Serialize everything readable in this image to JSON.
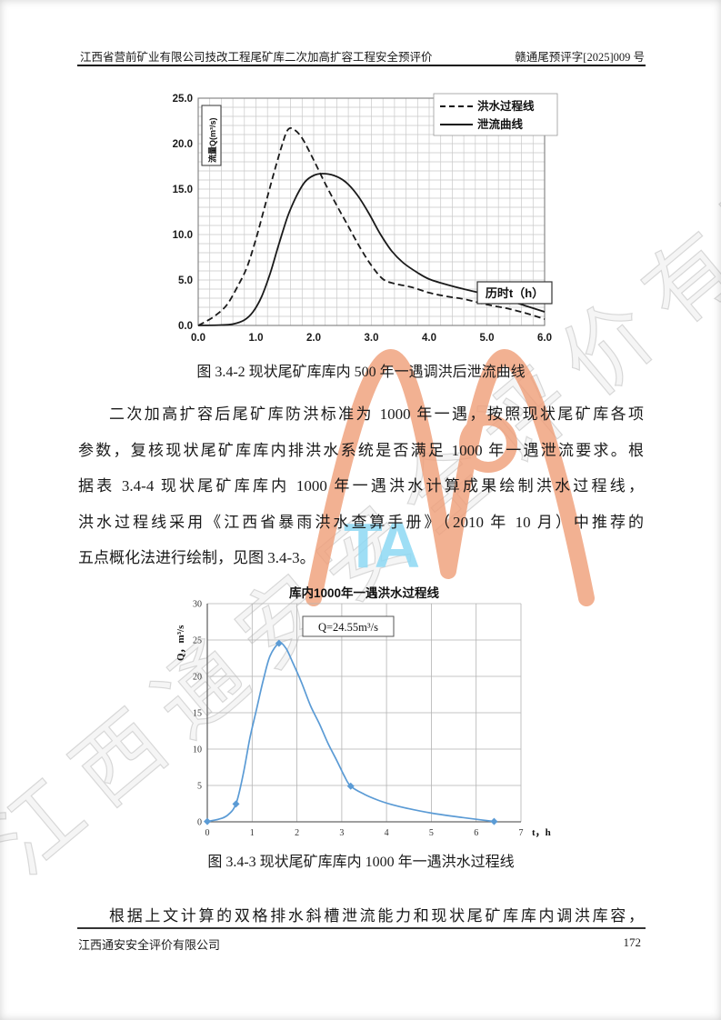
{
  "page": {
    "header": {
      "left": "江西省营前矿业有限公司技改工程尾矿库二次加高扩容工程安全预评价",
      "right": "赣通尾预评字[2025]009 号"
    },
    "footer": {
      "company": "江西通安安全评价有限公司",
      "page_number": "172"
    }
  },
  "figure1": {
    "caption": "图 3.4-2 现状尾矿库库内 500 年一遇调洪后泄流曲线"
  },
  "figure2": {
    "caption": "图 3.4-3 现状尾矿库库内 1000 年一遇洪水过程线"
  },
  "paragraphs": {
    "p1_lines": [
      "二次加高扩容后尾矿库防洪标准为 1000 年一遇，按照现状尾矿库各项",
      "参数，复核现状尾矿库库内排洪水系统是否满足 1000 年一遇泄流要求。根",
      "据表 3.4-4 现状尾矿库库内 1000 年一遇洪水计算成果绘制洪水过程线，",
      "洪水过程线采用《江西省暴雨洪水查算手册》（2010 年 10 月）中推荐的",
      "五点概化法进行绘制，见图 3.4-3。"
    ],
    "p2": "根据上文计算的双格排水斜槽泄流能力和现状尾矿库库内调洪库容，"
  },
  "watermark": {
    "diagonal_text": "江西通安安全评价有限公司",
    "ta_text": "TA",
    "logo_color": "#f09e78",
    "ta_color": "#8ed9f4"
  },
  "chart_data": [
    {
      "type": "line",
      "title": "",
      "ylabel": "流量Q(m³/s)",
      "xlabel": "历时t（h）",
      "xlim": [
        0,
        6
      ],
      "ylim": [
        0,
        25
      ],
      "x_ticks": [
        "0.0",
        "1.0",
        "2.0",
        "3.0",
        "4.0",
        "5.0",
        "6.0"
      ],
      "y_ticks": [
        "0.0",
        "5.0",
        "10.0",
        "15.0",
        "20.0",
        "25.0"
      ],
      "grid": {
        "x_minor": 0.2,
        "y_minor": 1,
        "on": true
      },
      "legend_position": "top-right",
      "series": [
        {
          "name": "洪水过程线",
          "style": "dashed",
          "color": "#1a1a1a",
          "points": [
            [
              0,
              0
            ],
            [
              0.15,
              0.5
            ],
            [
              0.3,
              1.1
            ],
            [
              0.5,
              2.3
            ],
            [
              0.7,
              4.5
            ],
            [
              0.85,
              6.5
            ],
            [
              1.0,
              9.5
            ],
            [
              1.15,
              13.0
            ],
            [
              1.3,
              16.5
            ],
            [
              1.45,
              19.8
            ],
            [
              1.55,
              21.5
            ],
            [
              1.65,
              21.6
            ],
            [
              1.8,
              20.6
            ],
            [
              2.0,
              18.2
            ],
            [
              2.2,
              15.6
            ],
            [
              2.4,
              13.2
            ],
            [
              2.6,
              10.9
            ],
            [
              2.8,
              8.6
            ],
            [
              3.0,
              6.6
            ],
            [
              3.2,
              5.1
            ],
            [
              3.4,
              4.6
            ],
            [
              3.7,
              4.2
            ],
            [
              4.0,
              3.6
            ],
            [
              4.3,
              3.2
            ],
            [
              4.6,
              2.9
            ],
            [
              5.0,
              2.3
            ],
            [
              5.4,
              1.8
            ],
            [
              5.7,
              1.3
            ],
            [
              6.0,
              0.7
            ]
          ]
        },
        {
          "name": "泄流曲线",
          "style": "solid",
          "color": "#1a1a1a",
          "points": [
            [
              0,
              0
            ],
            [
              0.4,
              0.05
            ],
            [
              0.6,
              0.15
            ],
            [
              0.8,
              0.6
            ],
            [
              0.95,
              1.5
            ],
            [
              1.1,
              3.2
            ],
            [
              1.25,
              5.8
            ],
            [
              1.4,
              9.0
            ],
            [
              1.55,
              12.0
            ],
            [
              1.7,
              14.2
            ],
            [
              1.85,
              15.8
            ],
            [
              2.0,
              16.5
            ],
            [
              2.15,
              16.7
            ],
            [
              2.35,
              16.5
            ],
            [
              2.55,
              15.8
            ],
            [
              2.75,
              14.4
            ],
            [
              2.95,
              12.4
            ],
            [
              3.15,
              10.1
            ],
            [
              3.35,
              8.2
            ],
            [
              3.55,
              6.9
            ],
            [
              3.8,
              5.8
            ],
            [
              4.0,
              5.1
            ],
            [
              4.3,
              4.5
            ],
            [
              4.6,
              4.0
            ],
            [
              5.0,
              3.4
            ],
            [
              5.4,
              2.7
            ],
            [
              5.7,
              2.1
            ],
            [
              6.0,
              1.5
            ]
          ]
        }
      ]
    },
    {
      "type": "line",
      "title": "库内1000年一遇洪水过程线",
      "ylabel": "Q，m³/s",
      "xlabel": "t，h",
      "annotation": "Q=24.55m³/s",
      "peak_flow": 24.55,
      "xlim": [
        0,
        7
      ],
      "ylim": [
        0,
        30
      ],
      "x_ticks": [
        "0",
        "1",
        "2",
        "3",
        "4",
        "5",
        "6",
        "7"
      ],
      "y_ticks": [
        "0",
        "5",
        "10",
        "15",
        "20",
        "25",
        "30"
      ],
      "grid": {
        "x_minor": 1,
        "y_minor": 5,
        "on": true
      },
      "series": [
        {
          "name": "洪水过程线",
          "style": "solid",
          "color": "#5b9bd5",
          "points": [
            [
              0,
              0.05
            ],
            [
              0.25,
              0.35
            ],
            [
              0.45,
              0.9
            ],
            [
              0.64,
              2.46
            ],
            [
              0.8,
              6.5
            ],
            [
              0.95,
              11.5
            ],
            [
              1.1,
              15.5
            ],
            [
              1.25,
              19.5
            ],
            [
              1.4,
              22.8
            ],
            [
              1.6,
              24.55
            ],
            [
              1.75,
              23.9
            ],
            [
              1.9,
              22.0
            ],
            [
              2.1,
              19.2
            ],
            [
              2.3,
              16.0
            ],
            [
              2.5,
              13.5
            ],
            [
              2.7,
              10.7
            ],
            [
              2.9,
              8.3
            ],
            [
              3.05,
              6.4
            ],
            [
              3.2,
              4.91
            ],
            [
              3.5,
              3.8
            ],
            [
              3.8,
              3.0
            ],
            [
              4.1,
              2.4
            ],
            [
              4.5,
              1.8
            ],
            [
              5.0,
              1.2
            ],
            [
              5.5,
              0.75
            ],
            [
              6.0,
              0.35
            ],
            [
              6.4,
              0.05
            ]
          ],
          "markers": [
            [
              0,
              0.05
            ],
            [
              0.64,
              2.46
            ],
            [
              1.6,
              24.55
            ],
            [
              3.2,
              4.91
            ],
            [
              6.4,
              0.05
            ]
          ]
        }
      ]
    }
  ]
}
